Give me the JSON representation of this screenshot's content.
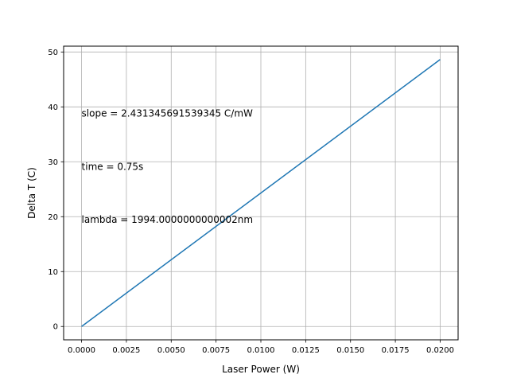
{
  "chart_data": {
    "type": "line",
    "title": "",
    "xlabel": "Laser Power (W)",
    "ylabel": "Delta T (C)",
    "xlim": [
      -0.001,
      0.021
    ],
    "ylim": [
      -2.43,
      51.06
    ],
    "grid": true,
    "xticks": [
      0.0,
      0.0025,
      0.005,
      0.0075,
      0.01,
      0.0125,
      0.015,
      0.0175,
      0.02
    ],
    "xtick_labels": [
      "0.0000",
      "0.0025",
      "0.0050",
      "0.0075",
      "0.0100",
      "0.0125",
      "0.0150",
      "0.0175",
      "0.0200"
    ],
    "yticks": [
      0,
      10,
      20,
      30,
      40,
      50
    ],
    "ytick_labels": [
      "0",
      "10",
      "20",
      "30",
      "40",
      "50"
    ],
    "series": [
      {
        "x": [
          0.0,
          0.02
        ],
        "y": [
          0.0,
          48.63
        ],
        "color": "#1f77b4"
      }
    ],
    "annotations": [
      {
        "text": "slope = 2.431345691539345 C/mW",
        "x": 0.0,
        "y": 38.9
      },
      {
        "text": "time = 0.75s",
        "x": 0.0,
        "y": 29.2
      },
      {
        "text": "lambda = 1994.0000000000002nm",
        "x": 0.0,
        "y": 19.5
      }
    ]
  }
}
